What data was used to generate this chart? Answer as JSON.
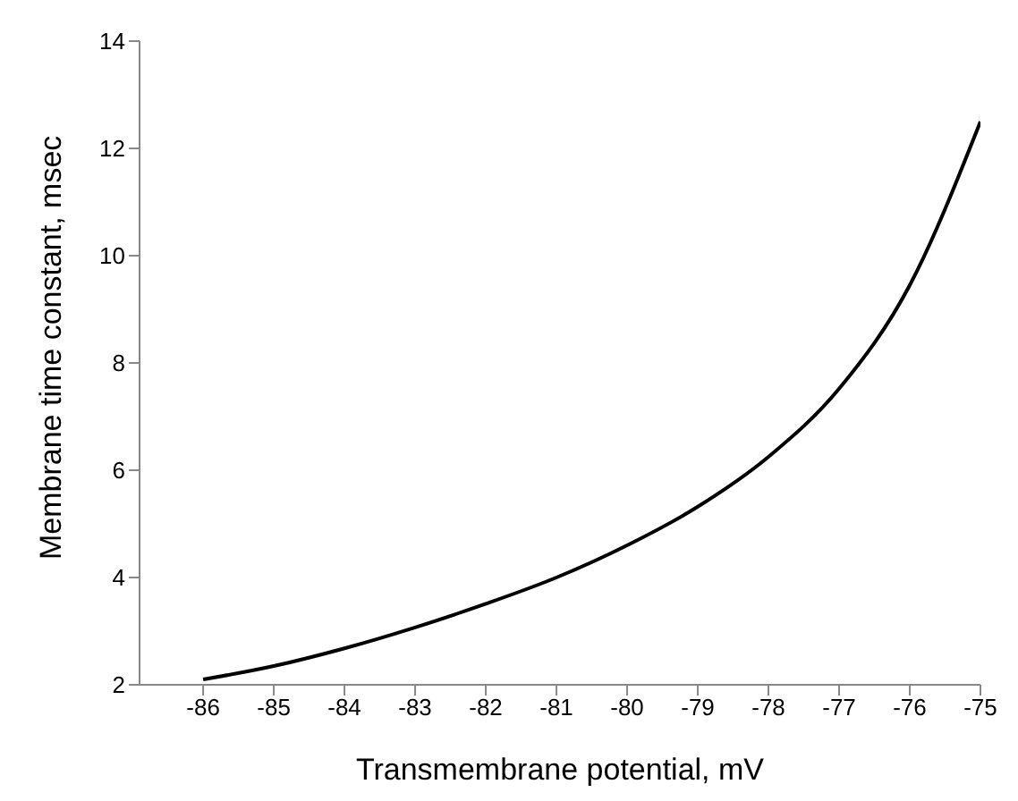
{
  "chart_data": {
    "type": "line",
    "xlabel": "Transmembrane potential, mV",
    "ylabel": "Membrane time constant, msec",
    "x": [
      -86,
      -85,
      -84,
      -83,
      -82,
      -81,
      -80,
      -79,
      -78,
      -77,
      -76,
      -75
    ],
    "series": [
      {
        "color": "#000000",
        "values": [
          2.1,
          2.35,
          2.68,
          3.07,
          3.51,
          4.0,
          4.6,
          5.32,
          6.25,
          7.52,
          9.45,
          12.5
        ]
      }
    ],
    "xlim": [
      -86.9,
      -75
    ],
    "xticks": [
      -86,
      -85,
      -84,
      -83,
      -82,
      -81,
      -80,
      -79,
      -78,
      -77,
      -76,
      -75
    ],
    "ylim": [
      2,
      14
    ],
    "yticks": [
      2,
      4,
      6,
      8,
      10,
      12,
      14
    ],
    "grid": false,
    "legend": false,
    "marker": "none",
    "line_style": "solid"
  }
}
